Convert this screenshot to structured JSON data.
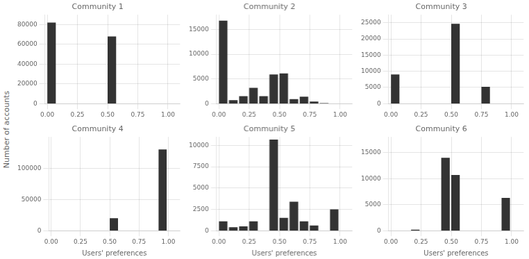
{
  "ylabel": "Number of accounts",
  "chart_data": [
    {
      "type": "histogram",
      "title": "Community 1",
      "bins": [
        0.0,
        0.083,
        0.167,
        0.25,
        0.333,
        0.417,
        0.5,
        0.583,
        0.667,
        0.75,
        0.833,
        0.917,
        1.0
      ],
      "values": [
        82000,
        0,
        0,
        0,
        0,
        0,
        68000,
        0,
        0,
        0,
        0,
        0
      ],
      "color": "#333333",
      "xlim": [
        -0.02,
        1.1
      ],
      "xticks": [
        {
          "value": 0.0,
          "label": "0.00"
        },
        0.25,
        {
          "value": 0.5,
          "label": "0.50"
        },
        0.75,
        {
          "value": 1.0,
          "label": "1.00"
        }
      ],
      "ylim": [
        0,
        90000
      ],
      "yticks": [
        0,
        20000,
        40000,
        60000,
        80000
      ],
      "grid": true
    },
    {
      "type": "histogram",
      "title": "Community 2",
      "bins": [
        0.0,
        0.083,
        0.167,
        0.25,
        0.333,
        0.417,
        0.5,
        0.583,
        0.667,
        0.75,
        0.833,
        0.917,
        1.0
      ],
      "values": [
        16800,
        700,
        1500,
        3200,
        1500,
        5900,
        6100,
        900,
        1400,
        400,
        100,
        0
      ],
      "color": "#333333",
      "xlim": [
        -0.02,
        1.1
      ],
      "xticks": [
        {
          "value": 0.0,
          "label": "0.00"
        },
        0.25,
        {
          "value": 0.5,
          "label": "0.50"
        },
        0.75,
        {
          "value": 1.0,
          "label": "1.00"
        }
      ],
      "ylim": [
        0,
        18000
      ],
      "yticks": [
        0,
        5000,
        10000,
        15000
      ],
      "grid": true
    },
    {
      "type": "histogram",
      "title": "Community 3",
      "bins": [
        0.0,
        0.083,
        0.167,
        0.25,
        0.333,
        0.417,
        0.5,
        0.583,
        0.667,
        0.75,
        0.833,
        0.917,
        1.0
      ],
      "values": [
        9000,
        0,
        0,
        0,
        0,
        0,
        24700,
        0,
        0,
        5200,
        0,
        0
      ],
      "color": "#333333",
      "xlim": [
        -0.02,
        1.1
      ],
      "xticks": [
        {
          "value": 0.0,
          "label": "0.00"
        },
        0.25,
        {
          "value": 0.5,
          "label": "0.50"
        },
        0.75,
        {
          "value": 1.0,
          "label": "1.00"
        }
      ],
      "ylim": [
        0,
        27500
      ],
      "yticks": [
        0,
        5000,
        10000,
        15000,
        20000,
        25000
      ],
      "grid": true
    },
    {
      "type": "histogram",
      "title": "Community 4",
      "xlabel": "Users' preferences",
      "bins": [
        0.0,
        0.083,
        0.167,
        0.25,
        0.333,
        0.417,
        0.5,
        0.583,
        0.667,
        0.75,
        0.833,
        0.917,
        1.0
      ],
      "values": [
        0,
        0,
        0,
        0,
        0,
        0,
        20000,
        0,
        0,
        0,
        0,
        130000
      ],
      "color": "#333333",
      "xlim": [
        -0.02,
        1.1
      ],
      "xticks": [
        {
          "value": 0.0,
          "label": "0.00"
        },
        0.25,
        {
          "value": 0.5,
          "label": "0.50"
        },
        0.75,
        {
          "value": 1.0,
          "label": "1.00"
        }
      ],
      "ylim": [
        0,
        150000
      ],
      "yticks": [
        0,
        50000,
        100000
      ],
      "grid": true
    },
    {
      "type": "histogram",
      "title": "Community 5",
      "xlabel": "Users' preferences",
      "bins": [
        0.0,
        0.083,
        0.167,
        0.25,
        0.333,
        0.417,
        0.5,
        0.583,
        0.667,
        0.75,
        0.833,
        0.917,
        1.0
      ],
      "values": [
        1100,
        400,
        500,
        1100,
        0,
        10700,
        1500,
        3400,
        1100,
        600,
        0,
        2500
      ],
      "color": "#333333",
      "xlim": [
        -0.02,
        1.1
      ],
      "xticks": [
        {
          "value": 0.0,
          "label": "0.00"
        },
        0.25,
        {
          "value": 0.5,
          "label": "0.50"
        },
        0.75,
        {
          "value": 1.0,
          "label": "1.00"
        }
      ],
      "ylim": [
        0,
        11000
      ],
      "yticks": [
        0,
        2500,
        5000,
        7500,
        10000
      ],
      "grid": true
    },
    {
      "type": "histogram",
      "title": "Community 6",
      "xlabel": "Users' preferences",
      "bins": [
        0.0,
        0.083,
        0.167,
        0.25,
        0.333,
        0.417,
        0.5,
        0.583,
        0.667,
        0.75,
        0.833,
        0.917,
        1.0
      ],
      "values": [
        0,
        0,
        200,
        0,
        0,
        14000,
        10700,
        0,
        0,
        0,
        0,
        6300
      ],
      "color": "#333333",
      "xlim": [
        -0.02,
        1.1
      ],
      "xticks": [
        {
          "value": 0.0,
          "label": "0.00"
        },
        0.25,
        {
          "value": 0.5,
          "label": "0.50"
        },
        0.75,
        {
          "value": 1.0,
          "label": "1.00"
        }
      ],
      "ylim": [
        0,
        18000
      ],
      "yticks": [
        0,
        5000,
        10000,
        15000
      ],
      "grid": true
    }
  ]
}
